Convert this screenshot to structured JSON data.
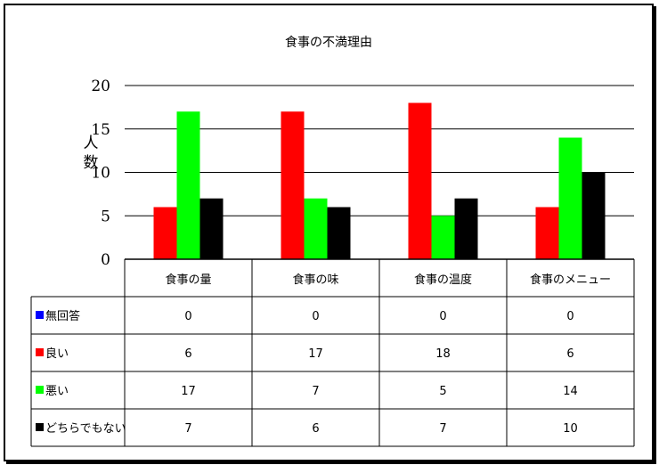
{
  "chart_data": {
    "type": "bar",
    "title": "食事の不満理由",
    "ylabel": "人数",
    "ylim": [
      0,
      20
    ],
    "yticks": [
      0,
      5,
      10,
      15,
      20
    ],
    "grid": true,
    "legend": "table-left",
    "categories": [
      "食事の量",
      "食事の味",
      "食事の温度",
      "食事のメニュー"
    ],
    "series": [
      {
        "name": "無回答",
        "color": "#0000ff",
        "values": [
          0,
          0,
          0,
          0
        ]
      },
      {
        "name": "良い",
        "color": "#ff0000",
        "values": [
          6,
          17,
          18,
          6
        ]
      },
      {
        "name": "悪い",
        "color": "#00ff00",
        "values": [
          17,
          7,
          5,
          14
        ]
      },
      {
        "name": "どちらでもない",
        "color": "#000000",
        "values": [
          7,
          6,
          7,
          10
        ]
      }
    ]
  }
}
